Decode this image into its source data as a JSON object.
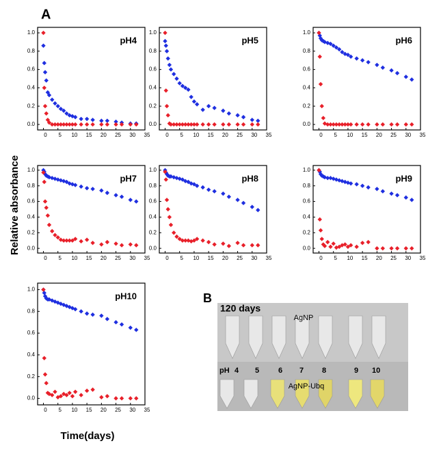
{
  "figure": {
    "panel_a": "A",
    "panel_b": "B",
    "ylabel": "Relative absorbance",
    "xlabel": "Time(days)"
  },
  "photo": {
    "title": "120 days",
    "top_label": "AgNP",
    "ph_label": "pH",
    "ph_values": [
      "4",
      "5",
      "6",
      "7",
      "8",
      "9",
      "10"
    ],
    "bottom_label": "AgNP-Ubq"
  },
  "chart_data": [
    {
      "type": "scatter",
      "title": "pH4",
      "xlim": [
        -2,
        35
      ],
      "ylim": [
        -0.06,
        1.06
      ],
      "xticks": [
        0,
        5,
        10,
        15,
        20,
        25,
        30,
        35
      ],
      "yticks": [
        {
          "value": 0,
          "label": "0.0"
        },
        0.2,
        0.4,
        0.6,
        0.8,
        {
          "value": 1,
          "label": "1.0"
        }
      ],
      "x": [
        0,
        0.3,
        0.6,
        1,
        1.5,
        2,
        3,
        4,
        5,
        6,
        7,
        8,
        9,
        10,
        11,
        13,
        15,
        17,
        20,
        22,
        25,
        27,
        30,
        32
      ],
      "series": [
        {
          "color": "#1f2fe0",
          "values": [
            0.86,
            0.67,
            0.57,
            0.48,
            0.35,
            0.32,
            0.27,
            0.23,
            0.2,
            0.17,
            0.15,
            0.12,
            0.1,
            0.09,
            0.08,
            0.06,
            0.06,
            0.05,
            0.04,
            0.04,
            0.03,
            0.02,
            0.01,
            0.01
          ]
        },
        {
          "color": "#e8202a",
          "values": [
            1.0,
            0.4,
            0.2,
            0.12,
            0.05,
            0.02,
            0,
            0,
            0,
            0,
            0,
            0,
            0,
            0,
            0,
            0,
            0,
            0,
            0,
            0,
            0,
            0,
            0,
            0
          ]
        }
      ]
    },
    {
      "type": "scatter",
      "title": "pH5",
      "xlim": [
        -2,
        35
      ],
      "ylim": [
        -0.06,
        1.06
      ],
      "xticks": [
        0,
        5,
        10,
        15,
        20,
        25,
        30,
        35
      ],
      "yticks": [
        {
          "value": 0,
          "label": "0.0"
        },
        0.2,
        0.4,
        0.6,
        0.8,
        {
          "value": 1,
          "label": "1.0"
        }
      ],
      "x": [
        0,
        0.3,
        0.6,
        1,
        1.5,
        2,
        3,
        4,
        5,
        6,
        7,
        8,
        9,
        10,
        11,
        13,
        15,
        17,
        20,
        22,
        25,
        27,
        30,
        32
      ],
      "series": [
        {
          "color": "#1f2fe0",
          "values": [
            0.91,
            0.86,
            0.8,
            0.72,
            0.65,
            0.6,
            0.55,
            0.5,
            0.45,
            0.42,
            0.4,
            0.38,
            0.3,
            0.25,
            0.22,
            0.16,
            0.2,
            0.18,
            0.15,
            0.12,
            0.1,
            0.08,
            0.05,
            0.04
          ]
        },
        {
          "color": "#e8202a",
          "values": [
            1.0,
            0.37,
            0.2,
            0.1,
            0.01,
            0,
            0,
            0,
            0,
            0,
            0,
            0,
            0,
            0,
            0,
            0,
            0,
            0,
            0,
            0,
            0,
            0,
            0,
            0
          ]
        }
      ]
    },
    {
      "type": "scatter",
      "title": "pH6",
      "xlim": [
        -2,
        35
      ],
      "ylim": [
        -0.06,
        1.06
      ],
      "xticks": [
        0,
        5,
        10,
        15,
        20,
        25,
        30,
        35
      ],
      "yticks": [
        {
          "value": 0,
          "label": "0.0"
        },
        0.2,
        0.4,
        0.6,
        0.8,
        {
          "value": 1,
          "label": "1.0"
        }
      ],
      "x": [
        0,
        0.3,
        0.6,
        1,
        1.5,
        2,
        3,
        4,
        5,
        6,
        7,
        8,
        9,
        10,
        11,
        13,
        15,
        17,
        20,
        22,
        25,
        27,
        30,
        32
      ],
      "series": [
        {
          "color": "#1f2fe0",
          "values": [
            1.0,
            0.97,
            0.94,
            0.92,
            0.91,
            0.9,
            0.89,
            0.88,
            0.86,
            0.84,
            0.82,
            0.79,
            0.77,
            0.76,
            0.74,
            0.72,
            0.7,
            0.68,
            0.65,
            0.62,
            0.59,
            0.56,
            0.52,
            0.49
          ]
        },
        {
          "color": "#e8202a",
          "values": [
            1.0,
            0.74,
            0.44,
            0.2,
            0.07,
            0.01,
            0,
            0,
            0,
            0,
            0,
            0,
            0,
            0,
            0,
            0,
            0,
            0,
            0,
            0,
            0,
            0,
            0,
            0
          ]
        }
      ]
    },
    {
      "type": "scatter",
      "title": "pH7",
      "xlim": [
        -2,
        35
      ],
      "ylim": [
        -0.06,
        1.06
      ],
      "xticks": [
        0,
        5,
        10,
        15,
        20,
        25,
        30,
        35
      ],
      "yticks": [
        {
          "value": 0,
          "label": "0.0"
        },
        0.2,
        0.4,
        0.6,
        0.8,
        {
          "value": 1,
          "label": "1.0"
        }
      ],
      "x": [
        0,
        0.3,
        0.6,
        1,
        1.5,
        2,
        3,
        4,
        5,
        6,
        7,
        8,
        9,
        10,
        11,
        13,
        15,
        17,
        20,
        22,
        25,
        27,
        30,
        32
      ],
      "series": [
        {
          "color": "#1f2fe0",
          "values": [
            1.0,
            0.98,
            0.95,
            0.93,
            0.92,
            0.91,
            0.9,
            0.89,
            0.88,
            0.87,
            0.86,
            0.85,
            0.83,
            0.82,
            0.81,
            0.79,
            0.77,
            0.76,
            0.74,
            0.71,
            0.68,
            0.66,
            0.62,
            0.6
          ]
        },
        {
          "color": "#e8202a",
          "values": [
            0.97,
            0.85,
            0.6,
            0.52,
            0.42,
            0.3,
            0.22,
            0.17,
            0.14,
            0.11,
            0.1,
            0.1,
            0.1,
            0.1,
            0.12,
            0.09,
            0.11,
            0.07,
            0.05,
            0.08,
            0.06,
            0.04,
            0.05,
            0.04
          ]
        }
      ]
    },
    {
      "type": "scatter",
      "title": "pH8",
      "xlim": [
        -2,
        35
      ],
      "ylim": [
        -0.06,
        1.06
      ],
      "xticks": [
        0,
        5,
        10,
        15,
        20,
        25,
        30,
        35
      ],
      "yticks": [
        {
          "value": 0,
          "label": "0.0"
        },
        0.2,
        0.4,
        0.6,
        0.8,
        {
          "value": 1,
          "label": "1.0"
        }
      ],
      "x": [
        0,
        0.3,
        0.6,
        1,
        1.5,
        2,
        3,
        4,
        5,
        6,
        7,
        8,
        9,
        10,
        11,
        13,
        15,
        17,
        20,
        22,
        25,
        27,
        30,
        32
      ],
      "series": [
        {
          "color": "#1f2fe0",
          "values": [
            1.0,
            0.97,
            0.95,
            0.93,
            0.92,
            0.92,
            0.91,
            0.9,
            0.89,
            0.88,
            0.86,
            0.85,
            0.83,
            0.82,
            0.8,
            0.78,
            0.75,
            0.73,
            0.7,
            0.66,
            0.62,
            0.58,
            0.53,
            0.49
          ]
        },
        {
          "color": "#e8202a",
          "values": [
            0.98,
            0.88,
            0.62,
            0.5,
            0.4,
            0.3,
            0.2,
            0.15,
            0.12,
            0.1,
            0.1,
            0.1,
            0.09,
            0.1,
            0.12,
            0.1,
            0.08,
            0.05,
            0.06,
            0.03,
            0.07,
            0.04,
            0.04,
            0.04
          ]
        }
      ]
    },
    {
      "type": "scatter",
      "title": "pH9",
      "xlim": [
        -2,
        35
      ],
      "ylim": [
        -0.06,
        1.06
      ],
      "xticks": [
        0,
        5,
        10,
        15,
        20,
        25,
        30,
        35
      ],
      "yticks": [
        {
          "value": 0,
          "label": "0.0"
        },
        0.2,
        0.4,
        0.6,
        0.8,
        {
          "value": 1,
          "label": "1.0"
        }
      ],
      "x": [
        0,
        0.3,
        0.6,
        1,
        1.5,
        2,
        3,
        4,
        5,
        6,
        7,
        8,
        9,
        10,
        11,
        13,
        15,
        17,
        20,
        22,
        25,
        27,
        30,
        32
      ],
      "series": [
        {
          "color": "#1f2fe0",
          "values": [
            1.0,
            0.98,
            0.95,
            0.93,
            0.92,
            0.91,
            0.9,
            0.9,
            0.89,
            0.88,
            0.87,
            0.86,
            0.85,
            0.84,
            0.83,
            0.82,
            0.8,
            0.78,
            0.76,
            0.73,
            0.7,
            0.68,
            0.65,
            0.62
          ]
        },
        {
          "color": "#e8202a",
          "values": [
            1.0,
            0.37,
            0.23,
            0.12,
            0.05,
            0.03,
            0.08,
            0.02,
            0.06,
            0.01,
            0.02,
            0.04,
            0.05,
            0.02,
            0.04,
            0.02,
            0.07,
            0.08,
            0,
            0,
            0,
            0,
            0,
            0
          ]
        }
      ]
    },
    {
      "type": "scatter",
      "title": "pH10",
      "xlim": [
        -2,
        35
      ],
      "ylim": [
        -0.06,
        1.06
      ],
      "xticks": [
        0,
        5,
        10,
        15,
        20,
        25,
        30,
        35
      ],
      "yticks": [
        {
          "value": 0,
          "label": "0.0"
        },
        0.2,
        0.4,
        0.6,
        0.8,
        {
          "value": 1,
          "label": "1.0"
        }
      ],
      "x": [
        0,
        0.3,
        0.6,
        1,
        1.5,
        2,
        3,
        4,
        5,
        6,
        7,
        8,
        9,
        10,
        11,
        13,
        15,
        17,
        20,
        22,
        25,
        27,
        30,
        32
      ],
      "series": [
        {
          "color": "#1f2fe0",
          "values": [
            1.0,
            0.97,
            0.94,
            0.92,
            0.91,
            0.91,
            0.9,
            0.89,
            0.88,
            0.87,
            0.86,
            0.85,
            0.84,
            0.83,
            0.82,
            0.8,
            0.78,
            0.77,
            0.76,
            0.73,
            0.7,
            0.68,
            0.65,
            0.63
          ]
        },
        {
          "color": "#e8202a",
          "values": [
            1.0,
            0.37,
            0.22,
            0.14,
            0.05,
            0.04,
            0.03,
            0.06,
            0.01,
            0.02,
            0.04,
            0.03,
            0.05,
            0.02,
            0.06,
            0.03,
            0.07,
            0.08,
            0.01,
            0.02,
            0,
            0,
            0,
            0
          ]
        }
      ]
    }
  ]
}
